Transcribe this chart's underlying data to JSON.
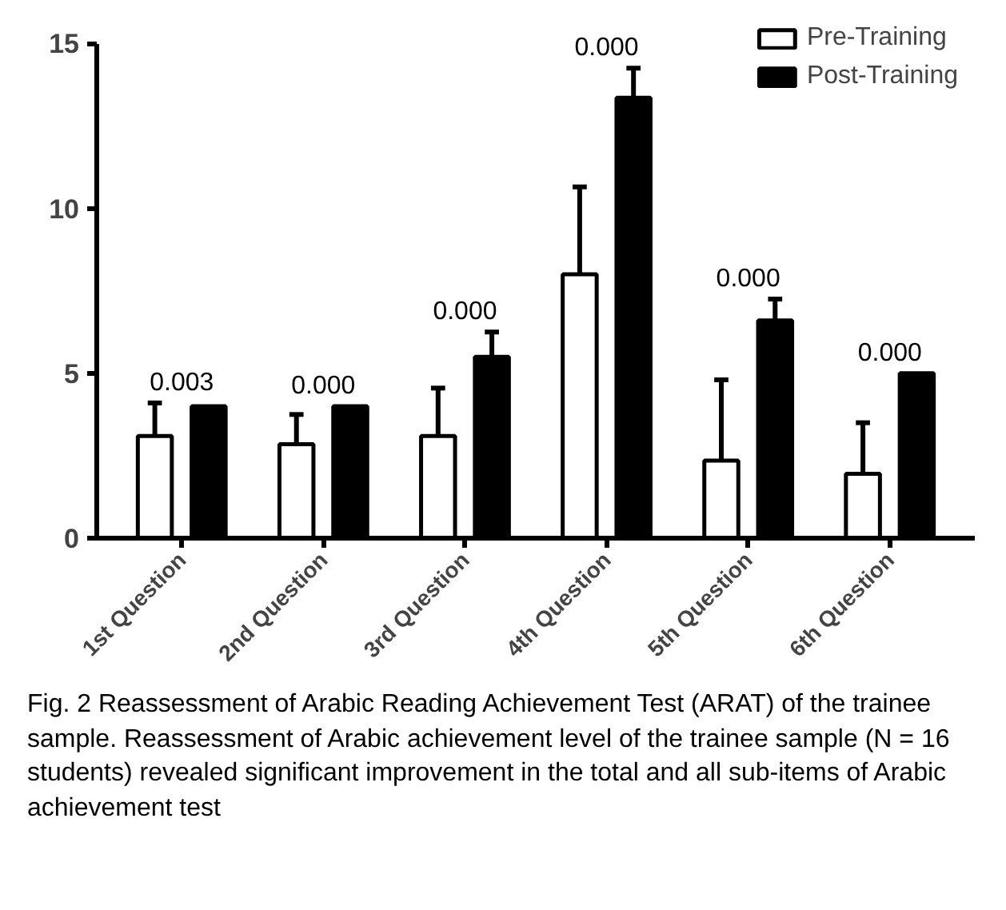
{
  "chart_data": {
    "type": "bar",
    "categories": [
      "1st Question",
      "2nd Question",
      "3rd Question",
      "4th Question",
      "5th Question",
      "6th Question"
    ],
    "series": [
      {
        "name": "Pre-Training",
        "color": "#ffffff",
        "values": [
          3.1,
          2.85,
          3.1,
          8.0,
          2.35,
          1.95
        ],
        "errors": [
          [
            3.1,
            4.1
          ],
          [
            2.85,
            3.75
          ],
          [
            3.1,
            4.55
          ],
          [
            8.0,
            10.65
          ],
          [
            2.35,
            4.8
          ],
          [
            1.95,
            3.5
          ]
        ]
      },
      {
        "name": "Post-Training",
        "color": "#000000",
        "values": [
          4.0,
          4.0,
          5.5,
          13.35,
          6.6,
          5.0
        ],
        "errors": [
          null,
          null,
          [
            5.5,
            6.25
          ],
          [
            13.35,
            14.25
          ],
          [
            6.6,
            7.25
          ],
          null
        ]
      }
    ],
    "ylim": [
      0,
      15
    ],
    "yticks": [
      0,
      5,
      10,
      15
    ],
    "grid": false,
    "legend": "top right",
    "annotations": [
      "0.003",
      "0.000",
      "0.000",
      "0.000",
      "0.000",
      "0.000",
      "Fig. 2  Reassessment of Arabic Reading Achievement Test (ARAT) of the trainee sample. Reassessment of Arabic achievement level of the trainee sample (N = 16 students) revealed significant improvement in the total and all sub-items of Arabic achievement test"
    ]
  }
}
